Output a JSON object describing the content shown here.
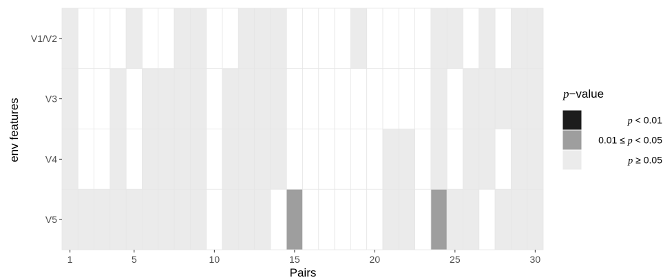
{
  "chart_data": {
    "type": "heatmap",
    "title": "",
    "xlabel": "Pairs",
    "ylabel": "env features",
    "x": [
      1,
      2,
      3,
      4,
      5,
      6,
      7,
      8,
      9,
      10,
      11,
      12,
      13,
      14,
      15,
      16,
      17,
      18,
      19,
      20,
      21,
      22,
      23,
      24,
      25,
      26,
      27,
      28,
      29,
      30
    ],
    "x_tick_labels": [
      "1",
      "5",
      "10",
      "15",
      "20",
      "25",
      "30"
    ],
    "x_tick_values": [
      1,
      5,
      10,
      15,
      20,
      25,
      30
    ],
    "y_categories": [
      "V1/V2",
      "V3",
      "V4",
      "V5"
    ],
    "levels": [
      "sig01",
      "sig05",
      "ns"
    ],
    "colors": {
      "sig01": "#1c1c1c",
      "sig05": "#9e9e9e",
      "ns": "#ebebeb",
      "missing": "#ffffff",
      "grid": "#e6e6e6"
    },
    "grid": true,
    "legend_placement": "right",
    "series": [
      {
        "row": "V1/V2",
        "values": [
          "ns",
          "missing",
          "missing",
          "missing",
          "ns",
          "missing",
          "missing",
          "ns",
          "ns",
          "missing",
          "missing",
          "ns",
          "ns",
          "ns",
          "missing",
          "missing",
          "missing",
          "missing",
          "ns",
          "missing",
          "missing",
          "missing",
          "missing",
          "ns",
          "ns",
          "missing",
          "ns",
          "missing",
          "ns",
          "ns"
        ]
      },
      {
        "row": "V3",
        "values": [
          "ns",
          "missing",
          "missing",
          "ns",
          "missing",
          "ns",
          "ns",
          "ns",
          "ns",
          "missing",
          "ns",
          "ns",
          "ns",
          "ns",
          "missing",
          "missing",
          "missing",
          "missing",
          "missing",
          "missing",
          "missing",
          "missing",
          "missing",
          "ns",
          "missing",
          "ns",
          "ns",
          "ns",
          "ns",
          "ns"
        ]
      },
      {
        "row": "V4",
        "values": [
          "ns",
          "missing",
          "missing",
          "ns",
          "missing",
          "ns",
          "ns",
          "ns",
          "ns",
          "missing",
          "ns",
          "ns",
          "ns",
          "ns",
          "missing",
          "missing",
          "missing",
          "missing",
          "missing",
          "missing",
          "ns",
          "ns",
          "missing",
          "ns",
          "missing",
          "ns",
          "ns",
          "missing",
          "ns",
          "ns"
        ]
      },
      {
        "row": "V5",
        "values": [
          "ns",
          "ns",
          "ns",
          "ns",
          "ns",
          "ns",
          "ns",
          "ns",
          "ns",
          "missing",
          "ns",
          "ns",
          "ns",
          "missing",
          "sig05",
          "missing",
          "missing",
          "missing",
          "missing",
          "missing",
          "ns",
          "ns",
          "missing",
          "sig05",
          "ns",
          "ns",
          "missing",
          "ns",
          "ns",
          "ns"
        ]
      }
    ]
  },
  "legend": {
    "title_var": "p",
    "title_rest": "−value",
    "items": [
      {
        "key": "sig01",
        "pre": "",
        "var": "p",
        "post": " < 0.01"
      },
      {
        "key": "sig05",
        "pre": "0.01 ≤ ",
        "var": "p",
        "post": " < 0.05"
      },
      {
        "key": "ns",
        "pre": "",
        "var": "p",
        "post": " ≥ 0.05"
      }
    ]
  }
}
